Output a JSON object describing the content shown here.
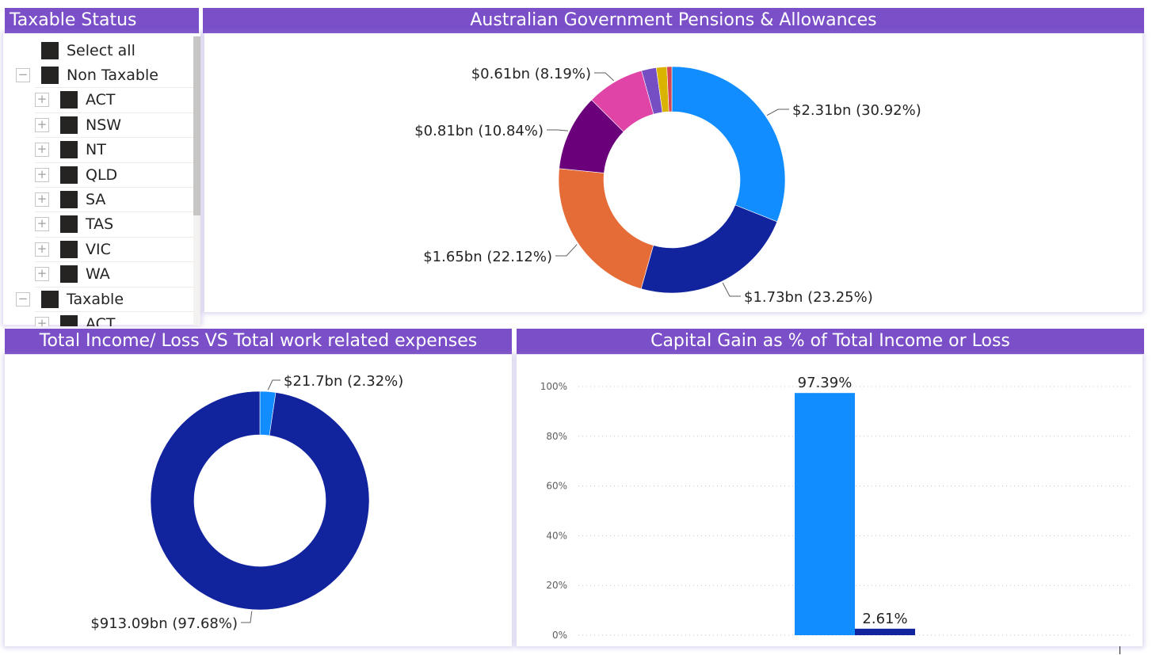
{
  "slicer": {
    "title": "Taxable Status",
    "items": [
      {
        "label": "Select all",
        "level": 0,
        "expander": ""
      },
      {
        "label": "Non Taxable",
        "level": 0,
        "expander": "−"
      },
      {
        "label": "ACT",
        "level": 1,
        "expander": "+"
      },
      {
        "label": "NSW",
        "level": 1,
        "expander": "+"
      },
      {
        "label": "NT",
        "level": 1,
        "expander": "+"
      },
      {
        "label": "QLD",
        "level": 1,
        "expander": "+"
      },
      {
        "label": "SA",
        "level": 1,
        "expander": "+"
      },
      {
        "label": "TAS",
        "level": 1,
        "expander": "+"
      },
      {
        "label": "VIC",
        "level": 1,
        "expander": "+"
      },
      {
        "label": "WA",
        "level": 1,
        "expander": "+"
      },
      {
        "label": "Taxable",
        "level": 0,
        "expander": "−"
      },
      {
        "label": "ACT",
        "level": 1,
        "expander": "+"
      }
    ]
  },
  "colors": {
    "header_bg": "#7b4fc8",
    "blue": "#118dff",
    "navy": "#12239e",
    "orange": "#e66c37",
    "purple": "#6b007b",
    "pink": "#e044a7",
    "violet": "#744ec2",
    "gold": "#d9b300",
    "red": "#d64550"
  },
  "chart_data": [
    {
      "type": "pie",
      "variant": "donut",
      "title": "Australian Government Pensions & Allowances",
      "slices": [
        {
          "label": "$2.31bn (30.92%)",
          "value": 30.92,
          "color": "#118dff"
        },
        {
          "label": "$1.73bn (23.25%)",
          "value": 23.25,
          "color": "#12239e"
        },
        {
          "label": "$1.65bn (22.12%)",
          "value": 22.12,
          "color": "#e66c37"
        },
        {
          "label": "$0.81bn (10.84%)",
          "value": 10.84,
          "color": "#6b007b"
        },
        {
          "label": "$0.61bn (8.19%)",
          "value": 8.19,
          "color": "#e044a7"
        },
        {
          "label": "",
          "value": 2.1,
          "color": "#744ec2"
        },
        {
          "label": "",
          "value": 1.5,
          "color": "#d9b300"
        },
        {
          "label": "",
          "value": 0.7,
          "color": "#d64550"
        }
      ]
    },
    {
      "type": "pie",
      "variant": "donut",
      "title": "Total Income/ Loss VS Total work related expenses",
      "slices": [
        {
          "label": "$21.7bn (2.32%)",
          "value": 2.32,
          "color": "#118dff"
        },
        {
          "label": "$913.09bn (97.68%)",
          "value": 97.68,
          "color": "#12239e"
        }
      ]
    },
    {
      "type": "bar",
      "title": "Capital Gain as % of Total Income or Loss",
      "yticks": [
        "0%",
        "20%",
        "40%",
        "60%",
        "80%",
        "100%"
      ],
      "ylim": [
        0,
        100
      ],
      "series": [
        {
          "value": 97.39,
          "label": "97.39%",
          "color": "#118dff"
        },
        {
          "value": 2.61,
          "label": "2.61%",
          "color": "#12239e"
        }
      ]
    }
  ]
}
